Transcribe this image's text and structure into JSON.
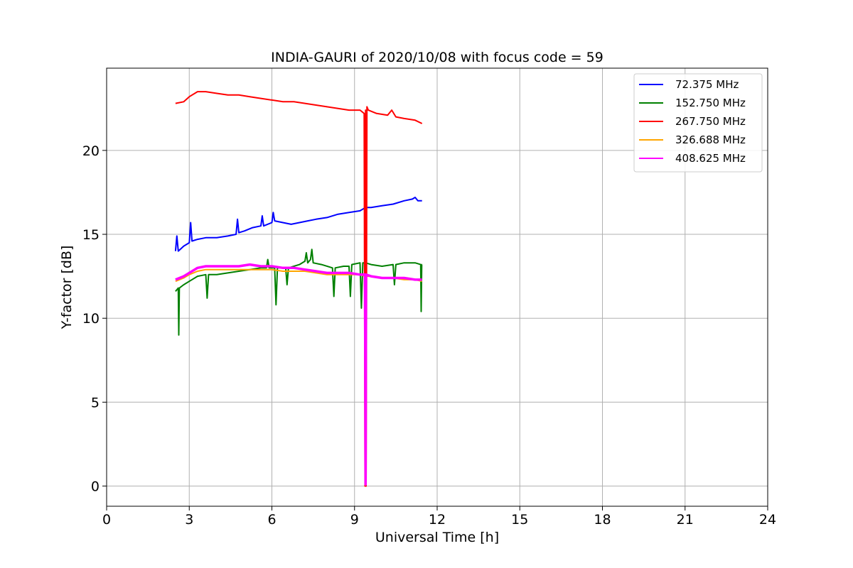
{
  "chart_data": {
    "type": "line",
    "title": "INDIA-GAURI of 2020/10/08 with focus code = 59",
    "xlabel": "Universal Time [h]",
    "ylabel": "Y-factor [dB]",
    "xlim": [
      0,
      24
    ],
    "ylim": [
      -1.2,
      24.9
    ],
    "xticks": [
      0,
      3,
      6,
      9,
      12,
      15,
      18,
      21,
      24
    ],
    "yticks": [
      0,
      5,
      10,
      15,
      20
    ],
    "grid": true,
    "legend_position": "top-right",
    "series": [
      {
        "name": "72.375 MHz",
        "color": "#0000ff",
        "x": [
          2.5,
          2.55,
          2.6,
          2.8,
          3.0,
          3.05,
          3.1,
          3.3,
          3.6,
          4.0,
          4.4,
          4.7,
          4.75,
          4.8,
          5.0,
          5.3,
          5.6,
          5.65,
          5.7,
          6.0,
          6.05,
          6.1,
          6.4,
          6.7,
          7.0,
          7.3,
          7.6,
          8.0,
          8.4,
          8.8,
          9.2,
          9.4,
          9.6,
          10.0,
          10.4,
          10.8,
          11.1,
          11.2,
          11.3,
          11.45
        ],
        "y": [
          14.0,
          14.9,
          14.0,
          14.3,
          14.5,
          15.7,
          14.6,
          14.7,
          14.8,
          14.8,
          14.9,
          15.0,
          15.9,
          15.1,
          15.2,
          15.4,
          15.5,
          16.1,
          15.5,
          15.7,
          16.3,
          15.8,
          15.7,
          15.6,
          15.7,
          15.8,
          15.9,
          16.0,
          16.2,
          16.3,
          16.4,
          16.6,
          16.6,
          16.7,
          16.8,
          17.0,
          17.1,
          17.2,
          17.0,
          17.0
        ]
      },
      {
        "name": "152.750 MHz",
        "color": "#008000",
        "x": [
          2.5,
          2.6,
          2.62,
          2.64,
          2.8,
          3.0,
          3.3,
          3.6,
          3.65,
          3.7,
          4.0,
          4.4,
          4.8,
          5.2,
          5.6,
          5.8,
          5.85,
          5.9,
          6.1,
          6.15,
          6.2,
          6.5,
          6.55,
          6.6,
          7.0,
          7.2,
          7.25,
          7.3,
          7.4,
          7.45,
          7.5,
          7.8,
          8.2,
          8.25,
          8.3,
          8.6,
          8.8,
          8.85,
          8.9,
          9.2,
          9.25,
          9.3,
          9.4,
          9.6,
          10.0,
          10.4,
          10.45,
          10.5,
          10.8,
          11.2,
          11.4,
          11.42,
          11.44,
          11.45
        ],
        "y": [
          11.6,
          11.8,
          9.0,
          11.8,
          12.0,
          12.2,
          12.5,
          12.6,
          11.2,
          12.6,
          12.6,
          12.7,
          12.8,
          12.9,
          13.0,
          13.0,
          13.5,
          13.0,
          13.0,
          10.8,
          13.0,
          13.0,
          12.0,
          13.0,
          13.2,
          13.4,
          13.9,
          13.3,
          13.5,
          14.1,
          13.3,
          13.2,
          13.0,
          11.3,
          13.0,
          13.1,
          13.1,
          11.3,
          13.2,
          13.3,
          10.6,
          13.3,
          13.3,
          13.2,
          13.1,
          13.2,
          12.0,
          13.2,
          13.3,
          13.3,
          13.2,
          10.4,
          13.2,
          13.2
        ]
      },
      {
        "name": "267.750 MHz",
        "color": "#ff0000",
        "x": [
          2.5,
          2.8,
          3.0,
          3.3,
          3.6,
          4.0,
          4.4,
          4.8,
          5.2,
          5.6,
          6.0,
          6.4,
          6.8,
          7.2,
          7.6,
          8.0,
          8.4,
          8.8,
          9.2,
          9.35,
          9.38,
          9.4,
          9.42,
          9.45,
          9.5,
          9.8,
          10.2,
          10.35,
          10.5,
          10.8,
          11.2,
          11.45
        ],
        "y": [
          22.8,
          22.9,
          23.2,
          23.5,
          23.5,
          23.4,
          23.3,
          23.3,
          23.2,
          23.1,
          23.0,
          22.9,
          22.9,
          22.8,
          22.7,
          22.6,
          22.5,
          22.4,
          22.4,
          22.2,
          0.0,
          22.4,
          0.0,
          22.6,
          22.4,
          22.2,
          22.1,
          22.4,
          22.0,
          21.9,
          21.8,
          21.6
        ]
      },
      {
        "name": "326.688 MHz",
        "color": "#ffa500",
        "x": [
          2.5,
          2.8,
          3.0,
          3.3,
          3.6,
          4.0,
          4.4,
          4.8,
          5.2,
          5.6,
          6.0,
          6.4,
          6.8,
          7.2,
          7.6,
          8.0,
          8.4,
          8.8,
          9.2,
          9.38,
          9.4,
          9.42,
          9.6,
          10.0,
          10.4,
          10.8,
          11.2,
          11.45
        ],
        "y": [
          12.2,
          12.4,
          12.6,
          12.8,
          12.9,
          12.9,
          12.9,
          12.9,
          12.9,
          12.9,
          12.9,
          12.8,
          12.8,
          12.8,
          12.7,
          12.6,
          12.6,
          12.6,
          12.6,
          12.5,
          0.2,
          12.5,
          12.5,
          12.4,
          12.4,
          12.3,
          12.3,
          12.2
        ]
      },
      {
        "name": "408.625 MHz",
        "color": "#ff00ff",
        "x": [
          2.5,
          2.8,
          3.0,
          3.3,
          3.6,
          4.0,
          4.4,
          4.8,
          5.2,
          5.6,
          6.0,
          6.4,
          6.8,
          7.2,
          7.6,
          8.0,
          8.4,
          8.8,
          9.2,
          9.38,
          9.4,
          9.42,
          9.6,
          10.0,
          10.4,
          10.8,
          11.2,
          11.45
        ],
        "y": [
          12.3,
          12.5,
          12.7,
          13.0,
          13.1,
          13.1,
          13.1,
          13.1,
          13.2,
          13.1,
          13.1,
          13.0,
          13.0,
          12.9,
          12.8,
          12.7,
          12.7,
          12.7,
          12.6,
          12.6,
          0.1,
          12.6,
          12.5,
          12.4,
          12.4,
          12.4,
          12.3,
          12.3
        ]
      }
    ]
  }
}
